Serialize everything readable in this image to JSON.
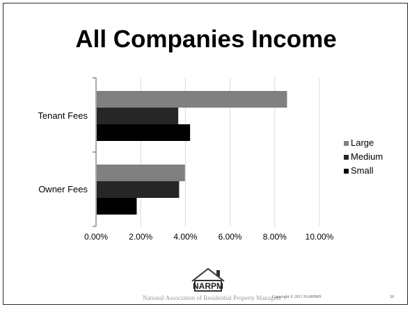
{
  "slide": {
    "title": "All Companies Income",
    "logo_text": "NARPM",
    "org_name": "National Association of Residential Property Managers",
    "copyright": "Copyright © 2011 NARPM®",
    "page_number": "20"
  },
  "chart_data": {
    "type": "bar",
    "orientation": "horizontal",
    "title": "All Companies Income",
    "categories": [
      "Tenant Fees",
      "Owner Fees"
    ],
    "series": [
      {
        "name": "Large",
        "color": "#808080",
        "values": [
          0.0855,
          0.0398
        ]
      },
      {
        "name": "Medium",
        "color": "#262626",
        "values": [
          0.0368,
          0.0372
        ]
      },
      {
        "name": "Small",
        "color": "#000000",
        "values": [
          0.0421,
          0.0182
        ]
      }
    ],
    "xlim": [
      0,
      0.1
    ],
    "xticks": [
      0,
      0.02,
      0.04,
      0.06,
      0.08,
      0.1
    ],
    "xtick_labels": [
      "0.00%",
      "2.00%",
      "4.00%",
      "6.00%",
      "8.00%",
      "10.00%"
    ],
    "grid": true,
    "legend_position": "right"
  }
}
